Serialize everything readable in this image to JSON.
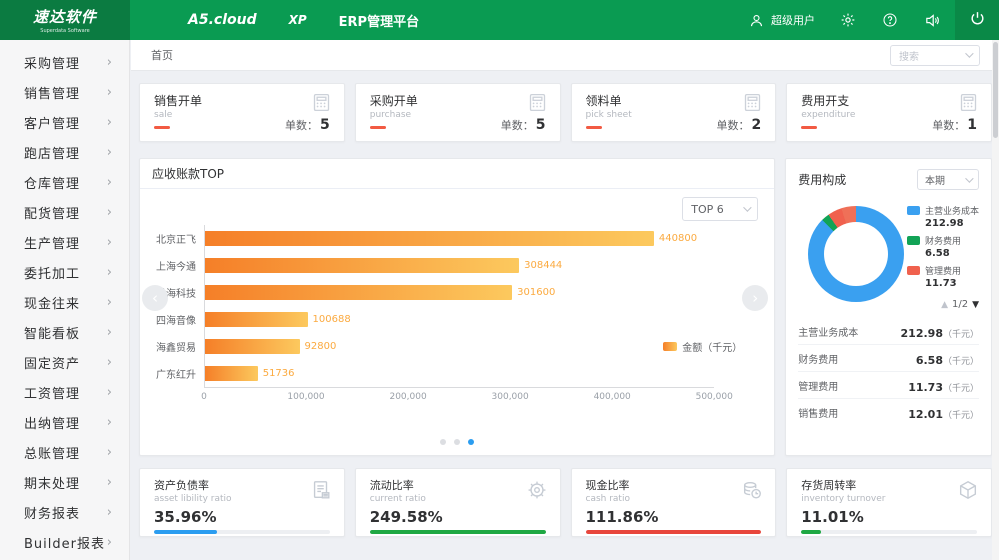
{
  "header": {
    "logo_title": "速达软件",
    "logo_subtitle": "Superdata Software",
    "product": "A5.cloud",
    "edition": "XP",
    "platform": "ERP管理平台",
    "user_label": "超级用户"
  },
  "sidebar": {
    "items": [
      "采购管理",
      "销售管理",
      "客户管理",
      "跑店管理",
      "仓库管理",
      "配货管理",
      "生产管理",
      "委托加工",
      "现金往来",
      "智能看板",
      "固定资产",
      "工资管理",
      "出纳管理",
      "总账管理",
      "期末处理",
      "财务报表",
      "Builder报表"
    ]
  },
  "tabbar": {
    "home_tab": "首页",
    "search_placeholder": "搜索"
  },
  "kpi_cards": [
    {
      "title": "销售开单",
      "subtitle": "sale",
      "count_label": "单数：",
      "count": "5"
    },
    {
      "title": "采购开单",
      "subtitle": "purchase",
      "count_label": "单数：",
      "count": "5"
    },
    {
      "title": "领料单",
      "subtitle": "pick sheet",
      "count_label": "单数：",
      "count": "2"
    },
    {
      "title": "费用开支",
      "subtitle": "expenditure",
      "count_label": "单数：",
      "count": "1"
    }
  ],
  "receivables": {
    "title": "应收账款TOP",
    "top_select": "TOP 6",
    "legend": "金额（千元）",
    "dots": 3,
    "active_dot": 2
  },
  "expenses": {
    "title": "费用构成",
    "period_select": "本期",
    "page_label": "1/2",
    "unit_suffix": "（千元）",
    "legend_items": [
      {
        "label": "主营业务成本",
        "value": "212.98",
        "color": "#3aa0f0"
      },
      {
        "label": "财务费用",
        "value": "6.58",
        "color": "#12a356"
      },
      {
        "label": "管理费用",
        "value": "11.73",
        "color": "#f0614e"
      }
    ],
    "rows": [
      {
        "label": "主营业务成本",
        "value": "212.98"
      },
      {
        "label": "财务费用",
        "value": "6.58"
      },
      {
        "label": "管理费用",
        "value": "11.73"
      },
      {
        "label": "销售费用",
        "value": "12.01"
      }
    ]
  },
  "ratio_cards": [
    {
      "title": "资产负债率",
      "subtitle": "asset libility ratio",
      "value": "35.96%",
      "percent": 36,
      "color": "#2b9df0",
      "icon": "report-icon"
    },
    {
      "title": "流动比率",
      "subtitle": "current ratio",
      "value": "249.58%",
      "percent": 100,
      "color": "#1fa843",
      "icon": "coin-gear-icon"
    },
    {
      "title": "现金比率",
      "subtitle": "cash ratio",
      "value": "111.86%",
      "percent": 100,
      "color": "#e8463c",
      "icon": "coins-icon"
    },
    {
      "title": "存货周转率",
      "subtitle": "inventory turnover",
      "value": "11.01%",
      "percent": 11,
      "color": "#1fa843",
      "icon": "cube-icon"
    }
  ],
  "chart_data": [
    {
      "type": "bar",
      "orientation": "horizontal",
      "title": "应收账款TOP",
      "categories": [
        "北京正飞",
        "上海今通",
        "洪海科技",
        "四海音像",
        "海鑫贸易",
        "广东红升"
      ],
      "values": [
        440800,
        308444,
        301600,
        100688,
        92800,
        51736
      ],
      "xlim": [
        0,
        500000
      ],
      "x_ticks": [
        "0",
        "100,000",
        "200,000",
        "300,000",
        "400,000",
        "500,000"
      ],
      "legend": [
        "金额（千元）"
      ],
      "bar_gradient": [
        "#f57f28",
        "#fcc95e"
      ],
      "value_label_color": "#fbaa40"
    },
    {
      "type": "pie",
      "title": "费用构成",
      "unit": "千元",
      "labels": [
        "主营业务成本",
        "财务费用",
        "管理费用",
        "销售费用"
      ],
      "values": [
        212.98,
        6.58,
        11.73,
        12.01
      ],
      "colors": [
        "#3aa0f0",
        "#12a356",
        "#f0614e",
        "#ef7058"
      ],
      "legend_position": "right",
      "donut": true
    }
  ]
}
